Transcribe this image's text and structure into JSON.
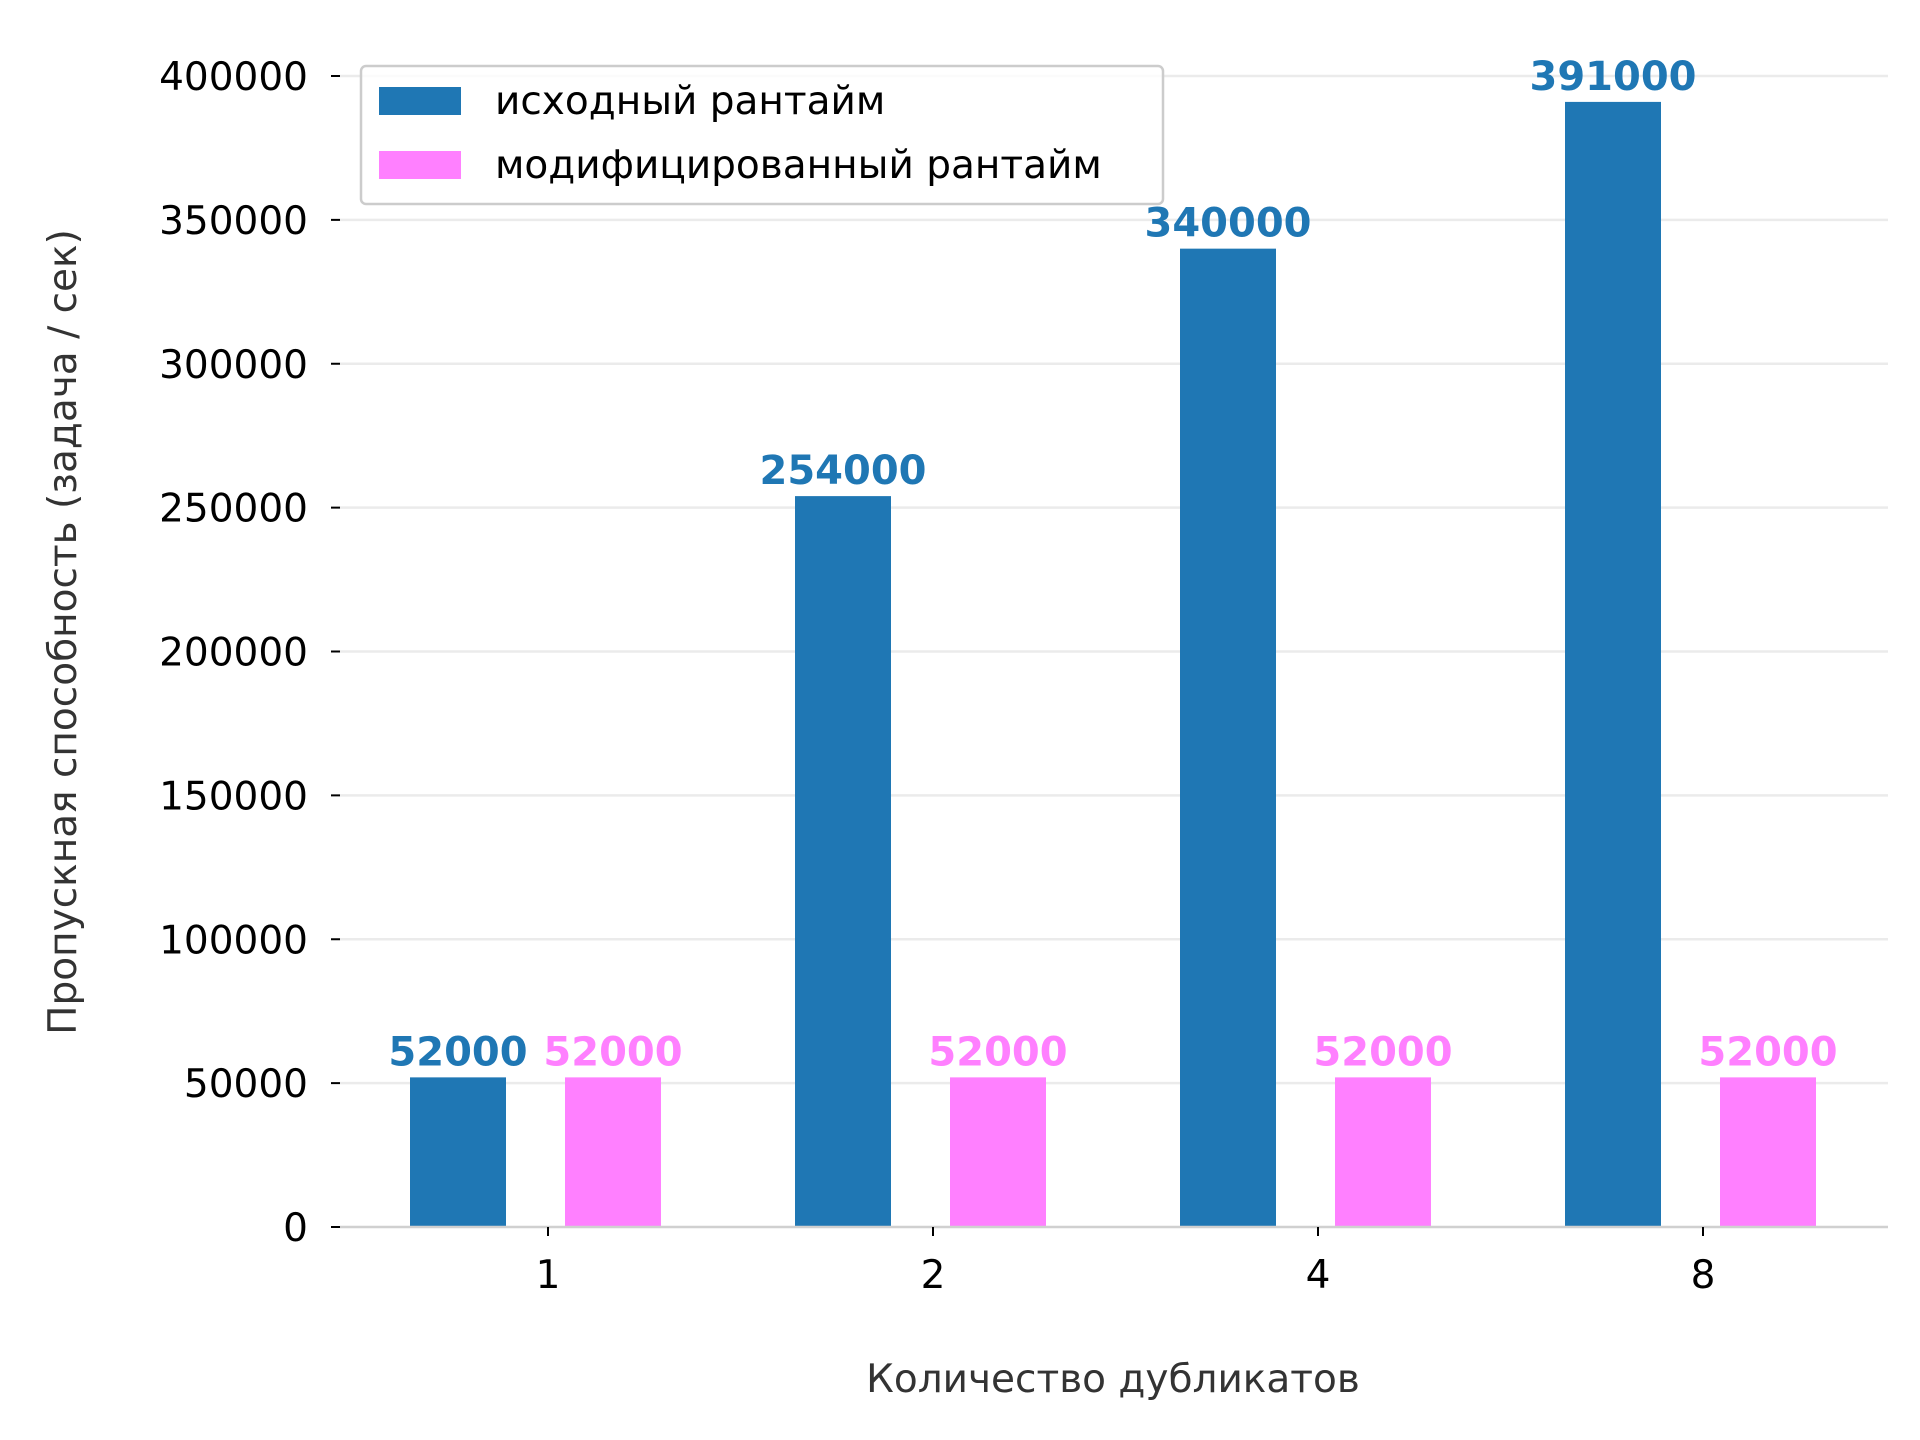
{
  "chart_data": {
    "type": "bar",
    "title": "",
    "xlabel": "Количество дубликатов",
    "ylabel": "Пропускная способность (задача / сек)",
    "categories": [
      "1",
      "2",
      "4",
      "8"
    ],
    "series": [
      {
        "name": "исходный рантайм",
        "color": "#1f77b4",
        "values": [
          52000,
          254000,
          340000,
          391000
        ]
      },
      {
        "name": "модифицированный рантайм",
        "color": "#ff80ff",
        "values": [
          52000,
          52000,
          52000,
          52000
        ]
      }
    ],
    "ylim": [
      0,
      400000
    ],
    "yticks": [
      "0",
      "50000",
      "100000",
      "150000",
      "200000",
      "250000",
      "300000",
      "350000",
      "400000"
    ],
    "data_labels": true,
    "grid": "horizontal",
    "legend_position": "top-left"
  }
}
